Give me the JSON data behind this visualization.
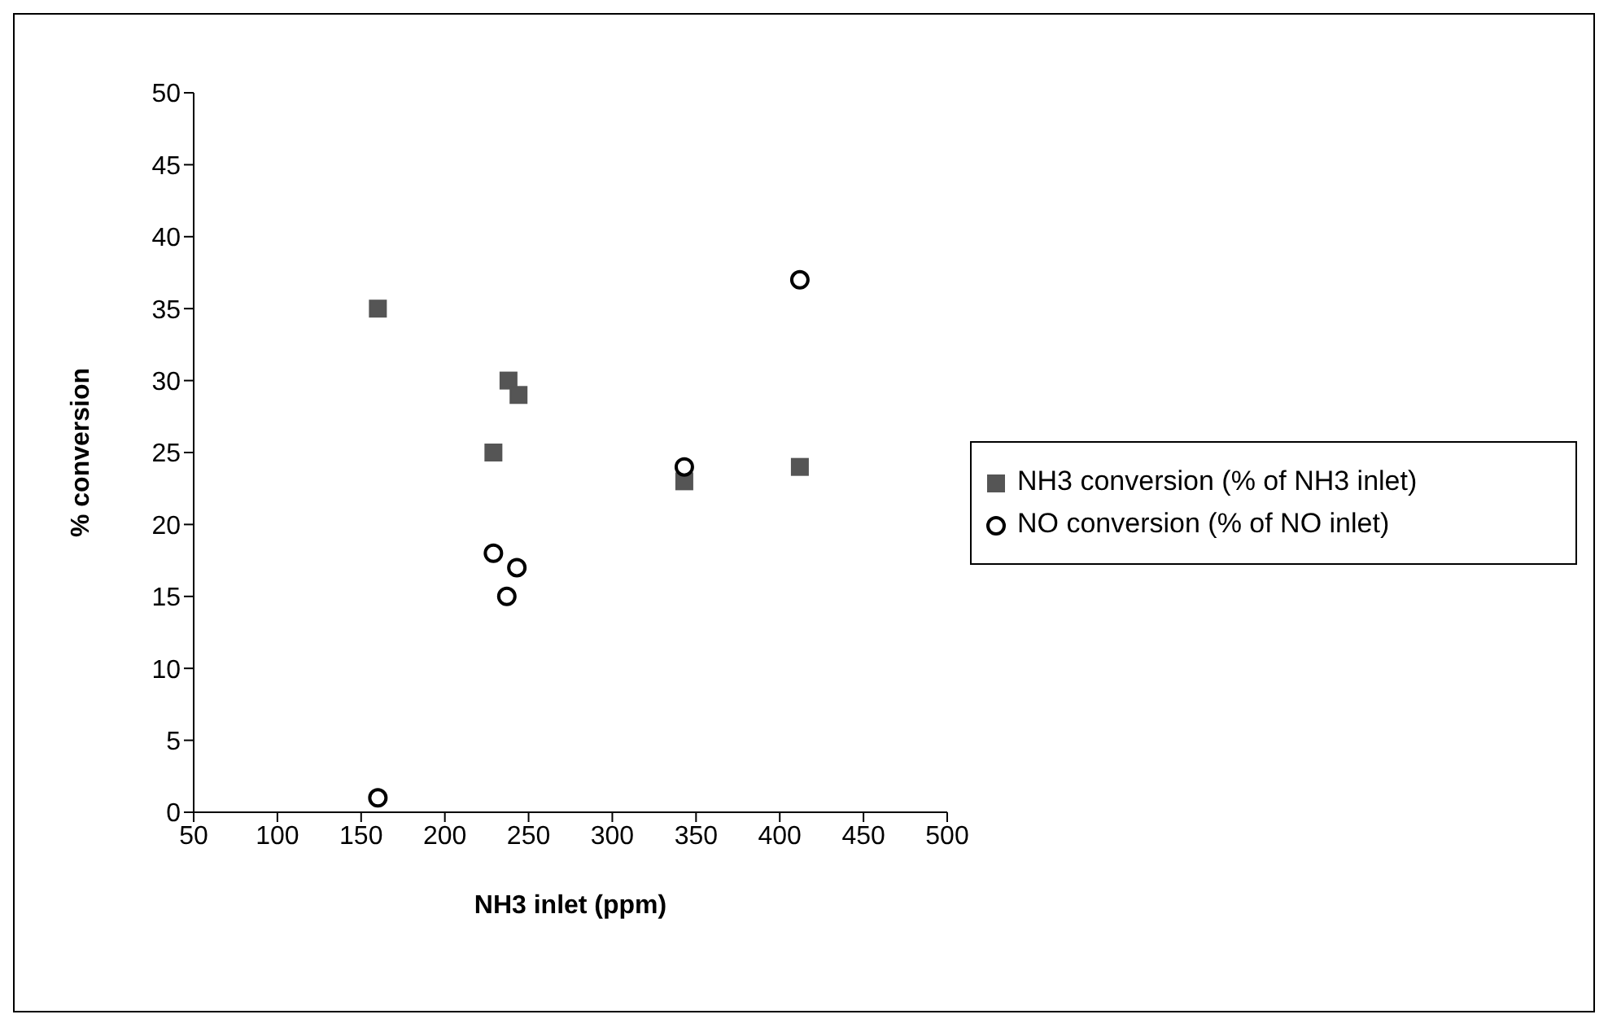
{
  "chart_data": {
    "type": "scatter",
    "xlabel": "NH3 inlet (ppm)",
    "ylabel": "% conversion",
    "xlim": [
      50,
      500
    ],
    "xticks": [
      50,
      100,
      150,
      200,
      250,
      300,
      350,
      400,
      450,
      500
    ],
    "ylim": [
      0,
      50
    ],
    "yticks": [
      0,
      5,
      10,
      15,
      20,
      25,
      30,
      35,
      40,
      45,
      50
    ],
    "grid": false,
    "legend": "right",
    "series": [
      {
        "name": "NH3 conversion (% of NH3 inlet)",
        "color": "#555555",
        "marker": "square",
        "x": [
          160,
          229,
          238,
          244,
          343,
          412
        ],
        "values": [
          35,
          25,
          30,
          29,
          23,
          24
        ]
      },
      {
        "name": "NO conversion (% of NO inlet)",
        "color": "#000000",
        "marker": "circle",
        "x": [
          160,
          229,
          237,
          243,
          343,
          412
        ],
        "values": [
          1,
          18,
          15,
          17,
          24,
          37
        ]
      }
    ]
  }
}
